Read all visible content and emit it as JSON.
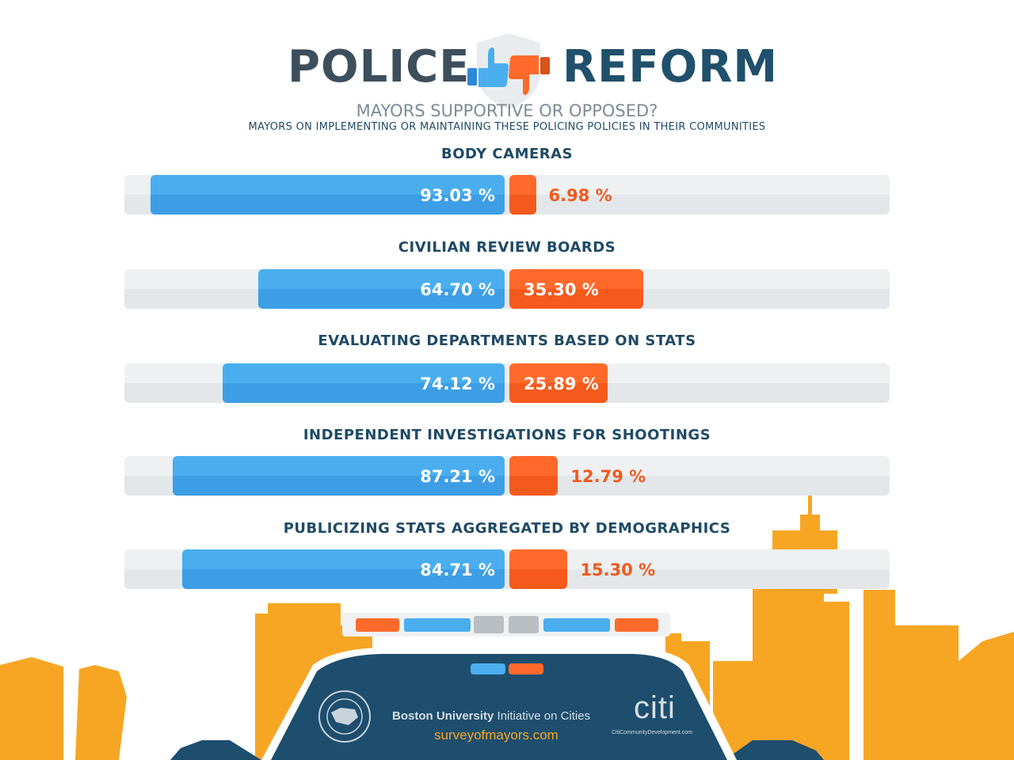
{
  "header": {
    "title_left": "POLICE",
    "title_right": "REFORM",
    "subtitle": "MAYORS SUPPORTIVE OR OPPOSED?",
    "subtitle2": "MAYORS ON IMPLEMENTING OR MAINTAINING THESE POLICING POLICIES IN THEIR COMMUNITIES",
    "emblem_icons": [
      "thumbs-up-icon",
      "thumbs-down-icon",
      "shield-icon"
    ]
  },
  "colors": {
    "supportive": "#4aaeee",
    "opposed": "#ff6a2a",
    "opposed_text": "#f05a1e",
    "skyline": "#f7a624",
    "car": "#1d4e6e"
  },
  "chart_data": {
    "type": "bar",
    "orientation": "horizontal-diverging",
    "categories": [
      "BODY CAMERAS",
      "CIVILIAN REVIEW BOARDS",
      "EVALUATING DEPARTMENTS BASED ON STATS",
      "INDEPENDENT INVESTIGATIONS FOR SHOOTINGS",
      "PUBLICIZING STATS AGGREGATED BY DEMOGRAPHICS"
    ],
    "series": [
      {
        "values": [
          93.03,
          64.7,
          74.12,
          87.21,
          84.71
        ],
        "labels": [
          "93.03 %",
          "64.70 %",
          "74.12 %",
          "87.21 %",
          "84.71 %"
        ]
      },
      {
        "values": [
          6.98,
          35.3,
          25.89,
          12.79,
          15.3
        ],
        "labels": [
          "6.98 %",
          "35.30 %",
          "25.89 %",
          "12.79 %",
          "15.30 %"
        ]
      }
    ],
    "xlim": [
      0,
      100
    ]
  },
  "footer": {
    "seal_icon": "us-conference-of-mayors-seal-icon",
    "org_bold": "Boston University",
    "org_rest": " Initiative on Cities",
    "website": "surveyofmayors.com",
    "citi_logo": "citi",
    "citi_url": "CitiCommunityDevelopment.com"
  }
}
